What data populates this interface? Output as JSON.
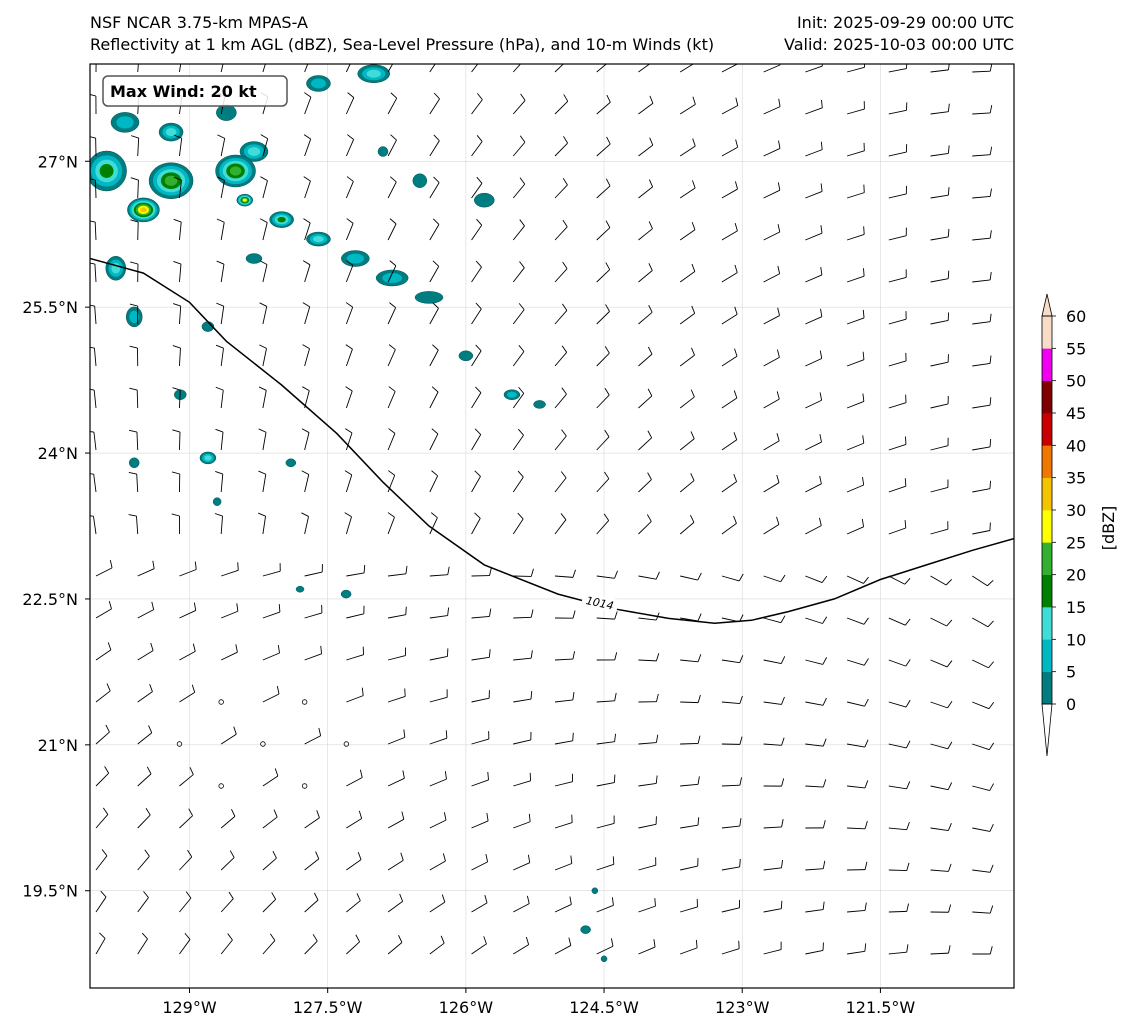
{
  "titles": {
    "left_line1": "NSF NCAR 3.75-km MPAS-A",
    "left_line2": "Reflectivity at 1 km AGL (dBZ), Sea-Level Pressure (hPa), and 10-m Winds (kt)",
    "right_line1": "Init: 2025-09-29 00:00 UTC",
    "right_line2": "Valid: 2025-10-03 00:00 UTC"
  },
  "annotation": {
    "max_wind": "Max Wind: 20 kt"
  },
  "axes": {
    "lon_ticks": [
      "129°W",
      "127.5°W",
      "126°W",
      "124.5°W",
      "123°W",
      "121.5°W"
    ],
    "lon_values": [
      -129,
      -127.5,
      -126,
      -124.5,
      -123,
      -121.5
    ],
    "lat_ticks": [
      "27°N",
      "25.5°N",
      "24°N",
      "22.5°N",
      "21°N",
      "19.5°N"
    ],
    "lat_values": [
      27,
      25.5,
      24,
      22.5,
      21,
      19.5
    ],
    "lon_range": [
      -130.08,
      -120.05
    ],
    "lat_range": [
      18.5,
      28.0
    ],
    "grid": true
  },
  "colorbar": {
    "label": "[dBZ]",
    "ticks": [
      "0",
      "5",
      "10",
      "15",
      "20",
      "25",
      "30",
      "35",
      "40",
      "45",
      "50",
      "55",
      "60"
    ],
    "levels": [
      0,
      5,
      10,
      15,
      20,
      25,
      30,
      35,
      40,
      45,
      50,
      55,
      60
    ],
    "colors": [
      "#007d80",
      "#00b8c4",
      "#40dcd8",
      "#008000",
      "#34b030",
      "#ffff00",
      "#f5c400",
      "#f07800",
      "#c80000",
      "#800000",
      "#f000f0",
      "#f8dcc8"
    ],
    "extend": "both"
  },
  "contours": {
    "slp_label": "1014",
    "slp_points": [
      [
        -130.08,
        26.0
      ],
      [
        -129.5,
        25.85
      ],
      [
        -129.0,
        25.55
      ],
      [
        -128.6,
        25.15
      ],
      [
        -128.0,
        24.7
      ],
      [
        -127.4,
        24.2
      ],
      [
        -126.9,
        23.7
      ],
      [
        -126.4,
        23.25
      ],
      [
        -125.8,
        22.85
      ],
      [
        -125.0,
        22.55
      ],
      [
        -124.4,
        22.4
      ],
      [
        -123.8,
        22.3
      ],
      [
        -123.3,
        22.25
      ],
      [
        -122.9,
        22.28
      ],
      [
        -122.5,
        22.37
      ],
      [
        -122.0,
        22.5
      ],
      [
        -121.5,
        22.7
      ],
      [
        -121.0,
        22.85
      ],
      [
        -120.5,
        23.0
      ],
      [
        -120.05,
        23.12
      ]
    ]
  },
  "reflectivity_cells": [
    {
      "lon": -129.7,
      "lat": 27.4,
      "rx": 14,
      "ry": 10,
      "dbz": 10
    },
    {
      "lon": -129.2,
      "lat": 27.3,
      "rx": 12,
      "ry": 9,
      "dbz": 15
    },
    {
      "lon": -128.6,
      "lat": 27.5,
      "rx": 10,
      "ry": 8,
      "dbz": 5
    },
    {
      "lon": -128.3,
      "lat": 27.1,
      "rx": 14,
      "ry": 10,
      "dbz": 15
    },
    {
      "lon": -127.6,
      "lat": 27.8,
      "rx": 12,
      "ry": 8,
      "dbz": 10
    },
    {
      "lon": -127.0,
      "lat": 27.9,
      "rx": 16,
      "ry": 9,
      "dbz": 15
    },
    {
      "lon": -129.9,
      "lat": 26.9,
      "rx": 20,
      "ry": 20,
      "dbz": 20
    },
    {
      "lon": -129.2,
      "lat": 26.8,
      "rx": 22,
      "ry": 18,
      "dbz": 25
    },
    {
      "lon": -128.5,
      "lat": 26.9,
      "rx": 20,
      "ry": 16,
      "dbz": 25
    },
    {
      "lon": -129.5,
      "lat": 26.5,
      "rx": 16,
      "ry": 12,
      "dbz": 35
    },
    {
      "lon": -128.4,
      "lat": 26.6,
      "rx": 8,
      "ry": 6,
      "dbz": 30
    },
    {
      "lon": -128.0,
      "lat": 26.4,
      "rx": 12,
      "ry": 8,
      "dbz": 20
    },
    {
      "lon": -127.6,
      "lat": 26.2,
      "rx": 12,
      "ry": 7,
      "dbz": 15
    },
    {
      "lon": -127.2,
      "lat": 26.0,
      "rx": 14,
      "ry": 8,
      "dbz": 10
    },
    {
      "lon": -126.8,
      "lat": 25.8,
      "rx": 16,
      "ry": 8,
      "dbz": 10
    },
    {
      "lon": -126.4,
      "lat": 25.6,
      "rx": 14,
      "ry": 6,
      "dbz": 5
    },
    {
      "lon": -129.8,
      "lat": 25.9,
      "rx": 10,
      "ry": 12,
      "dbz": 15
    },
    {
      "lon": -129.6,
      "lat": 25.4,
      "rx": 8,
      "ry": 10,
      "dbz": 10
    },
    {
      "lon": -128.8,
      "lat": 25.3,
      "rx": 6,
      "ry": 5,
      "dbz": 5
    },
    {
      "lon": -129.1,
      "lat": 24.6,
      "rx": 6,
      "ry": 5,
      "dbz": 5
    },
    {
      "lon": -128.3,
      "lat": 26.0,
      "rx": 8,
      "ry": 5,
      "dbz": 5
    },
    {
      "lon": -126.0,
      "lat": 25.0,
      "rx": 7,
      "ry": 5,
      "dbz": 5
    },
    {
      "lon": -125.5,
      "lat": 24.6,
      "rx": 8,
      "ry": 5,
      "dbz": 10
    },
    {
      "lon": -125.2,
      "lat": 24.5,
      "rx": 6,
      "ry": 4,
      "dbz": 5
    },
    {
      "lon": -125.8,
      "lat": 26.6,
      "rx": 10,
      "ry": 7,
      "dbz": 5
    },
    {
      "lon": -126.5,
      "lat": 26.8,
      "rx": 7,
      "ry": 7,
      "dbz": 5
    },
    {
      "lon": -126.9,
      "lat": 27.1,
      "rx": 5,
      "ry": 5,
      "dbz": 5
    },
    {
      "lon": -129.6,
      "lat": 23.9,
      "rx": 5,
      "ry": 5,
      "dbz": 5
    },
    {
      "lon": -128.8,
      "lat": 23.95,
      "rx": 8,
      "ry": 6,
      "dbz": 15
    },
    {
      "lon": -127.9,
      "lat": 23.9,
      "rx": 5,
      "ry": 4,
      "dbz": 5
    },
    {
      "lon": -128.7,
      "lat": 23.5,
      "rx": 4,
      "ry": 4,
      "dbz": 5
    },
    {
      "lon": -127.8,
      "lat": 22.6,
      "rx": 4,
      "ry": 3,
      "dbz": 5
    },
    {
      "lon": -127.3,
      "lat": 22.55,
      "rx": 5,
      "ry": 4,
      "dbz": 5
    },
    {
      "lon": -124.6,
      "lat": 19.5,
      "rx": 3,
      "ry": 3,
      "dbz": 5
    },
    {
      "lon": -124.7,
      "lat": 19.1,
      "rx": 5,
      "ry": 4,
      "dbz": 5
    },
    {
      "lon": -124.5,
      "lat": 18.8,
      "rx": 3,
      "ry": 3,
      "dbz": 5
    }
  ]
}
